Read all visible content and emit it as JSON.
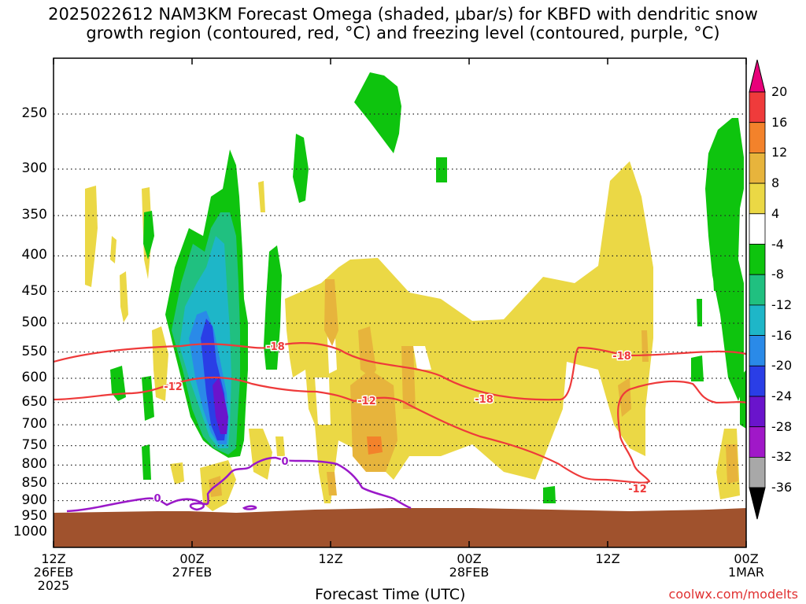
{
  "title_line1": "2025022612 NAM3KM Forecast Omega (shaded, μbar/s) for KBFD with dendritic snow",
  "title_line2": "growth region (contoured, red, °C) and freezing level (contoured, purple, °C)",
  "x_axis_title": "Forecast Time (UTC)",
  "watermark": "coolwx.com/modelts",
  "chart_data": {
    "type": "time-height cross section",
    "title": "2025022612 NAM3KM Forecast Omega (shaded, μbar/s) for KBFD with dendritic snow growth region (contoured, red, °C) and freezing level (contoured, purple, °C)",
    "xlabel": "Forecast Time (UTC)",
    "ylabel": "",
    "y_scale": "log-pressure (hPa), inverted",
    "y_ticks": [
      250,
      300,
      350,
      400,
      450,
      500,
      550,
      600,
      650,
      700,
      750,
      800,
      850,
      900,
      950,
      1000
    ],
    "x_ticks": [
      {
        "hour": 0,
        "label": [
          "12Z",
          "26FEB",
          "2025"
        ]
      },
      {
        "hour": 12,
        "label": [
          "00Z",
          "27FEB"
        ]
      },
      {
        "hour": 24,
        "label": [
          "12Z"
        ]
      },
      {
        "hour": 36,
        "label": [
          "00Z",
          "28FEB"
        ]
      },
      {
        "hour": 48,
        "label": [
          "12Z"
        ]
      },
      {
        "hour": 60,
        "label": [
          "00Z",
          "1MAR"
        ]
      }
    ],
    "colorbar": {
      "unit": "μbar/s",
      "levels": [
        20,
        16,
        12,
        8,
        4,
        -4,
        -8,
        -12,
        -16,
        -20,
        -24,
        -28,
        -32,
        -36
      ],
      "colors": [
        "#e8007a",
        "#ef3b3b",
        "#f3822b",
        "#e7b43c",
        "#ebd845",
        "#ffffff",
        "#0ec40e",
        "#20c080",
        "#1eb6c8",
        "#2a8ae8",
        "#2a3ee6",
        "#6a14cc",
        "#a018c8",
        "#a8a8a8",
        "#000000"
      ]
    },
    "contours": [
      {
        "name": "dendritic snow growth region",
        "color": "#ee3a3a",
        "labels": [
          "-18",
          "-12",
          "-12",
          "-18",
          "-18",
          "-12"
        ]
      },
      {
        "name": "freezing level",
        "color": "#9a18c8",
        "labels": [
          "0",
          "0"
        ]
      }
    ],
    "terrain_color": "#a0522d"
  }
}
